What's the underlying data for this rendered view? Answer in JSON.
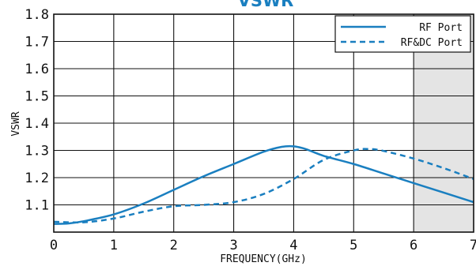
{
  "chart_data": {
    "type": "line",
    "title": "VSWR",
    "xlabel": "FREQUENCY(GHz)",
    "ylabel": "VSWR",
    "xlim": [
      0,
      7
    ],
    "ylim": [
      1.0,
      1.8
    ],
    "x_ticks": [
      "0",
      "1",
      "2",
      "3",
      "4",
      "5",
      "6",
      "7"
    ],
    "y_ticks": [
      "1.1",
      "1.2",
      "1.3",
      "1.4",
      "1.5",
      "1.6",
      "1.7",
      "1.8"
    ],
    "grid": true,
    "legend_position": "top-right",
    "shaded_region": [
      6,
      7
    ],
    "series": [
      {
        "name": "RF Port",
        "style": "solid",
        "color": "#1a7fc0",
        "points": [
          [
            0,
            1.03
          ],
          [
            0.25,
            1.032
          ],
          [
            0.5,
            1.04
          ],
          [
            1,
            1.065
          ],
          [
            1.5,
            1.105
          ],
          [
            2,
            1.155
          ],
          [
            2.5,
            1.205
          ],
          [
            3,
            1.25
          ],
          [
            3.5,
            1.295
          ],
          [
            3.8,
            1.313
          ],
          [
            4,
            1.315
          ],
          [
            4.2,
            1.305
          ],
          [
            4.5,
            1.28
          ],
          [
            5,
            1.25
          ],
          [
            5.5,
            1.215
          ],
          [
            6,
            1.18
          ],
          [
            6.5,
            1.145
          ],
          [
            7,
            1.11
          ]
        ]
      },
      {
        "name": "RF&DC Port",
        "style": "dashed",
        "color": "#1a7fc0",
        "points": [
          [
            0,
            1.038
          ],
          [
            0.5,
            1.036
          ],
          [
            1,
            1.05
          ],
          [
            1.5,
            1.075
          ],
          [
            2,
            1.095
          ],
          [
            2.5,
            1.1
          ],
          [
            3,
            1.11
          ],
          [
            3.5,
            1.14
          ],
          [
            4,
            1.195
          ],
          [
            4.5,
            1.265
          ],
          [
            5,
            1.3
          ],
          [
            5.25,
            1.305
          ],
          [
            5.5,
            1.298
          ],
          [
            6,
            1.27
          ],
          [
            6.5,
            1.235
          ],
          [
            7,
            1.195
          ]
        ]
      }
    ]
  }
}
